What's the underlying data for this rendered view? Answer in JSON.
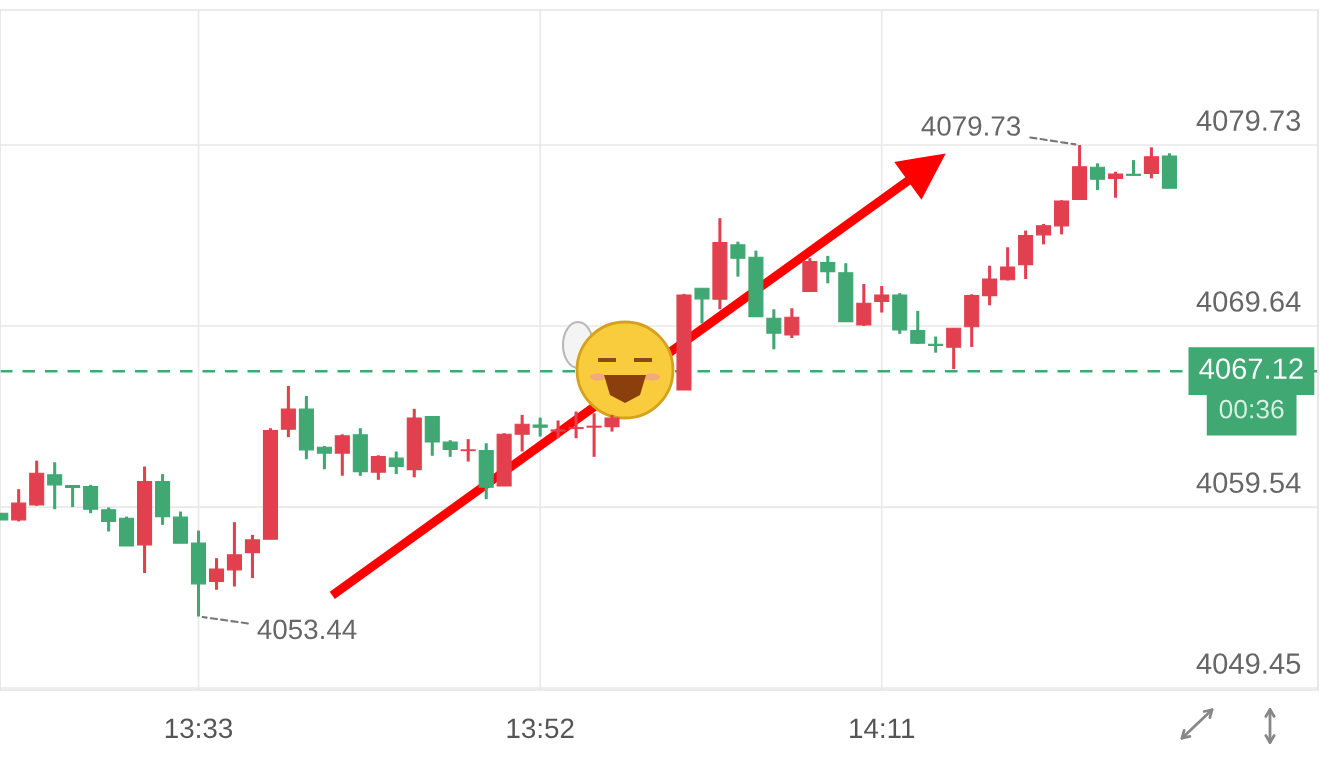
{
  "chart_data": {
    "type": "candlestick",
    "x": [
      13.3667,
      13.3833,
      13.4,
      13.4167,
      13.4333,
      13.45,
      13.4667,
      13.4833,
      13.5,
      13.5167,
      13.5333,
      13.55,
      13.5667,
      13.5833,
      13.6,
      13.6167,
      13.6333,
      13.65,
      13.6667,
      13.6833,
      13.7,
      13.7167,
      13.7333,
      13.75,
      13.7667,
      13.7833,
      13.8,
      13.8167,
      13.8333,
      13.85,
      13.8667,
      13.8833,
      13.9,
      13.9167,
      13.9333,
      14.0,
      14.0167,
      14.0333,
      14.05,
      14.0667,
      14.0833,
      14.1,
      14.1167,
      14.1333,
      14.15,
      14.1667,
      14.1833,
      14.2,
      14.2167,
      14.2333,
      14.25,
      14.2667,
      14.2833,
      14.3,
      14.3167,
      14.3333,
      14.35,
      14.3667,
      14.3833,
      14.4,
      14.4167,
      14.4333,
      14.45
    ],
    "ohlc": [
      [
        4059.2,
        4059.2,
        4058.83,
        4058.83
      ],
      [
        4058.83,
        4060.54,
        4058.74,
        4059.76
      ],
      [
        4059.66,
        4062.13,
        4059.61,
        4061.43
      ],
      [
        4061.34,
        4062.04,
        4059.42,
        4060.78
      ],
      [
        4060.74,
        4060.74,
        4059.54,
        4060.64
      ],
      [
        4060.68,
        4060.78,
        4059.2,
        4059.42
      ],
      [
        4059.39,
        4059.52,
        4058.18,
        4058.74
      ],
      [
        4058.92,
        4059.01,
        4057.37,
        4057.37
      ],
      [
        4057.43,
        4061.8,
        4055.86,
        4060.96
      ],
      [
        4060.96,
        4061.38,
        4058.55,
        4059.01
      ],
      [
        4058.98,
        4059.29,
        4057.53,
        4057.53
      ],
      [
        4057.53,
        4058.23,
        4053.44,
        4055.26
      ],
      [
        4055.39,
        4056.69,
        4054.93,
        4056.08
      ],
      [
        4056.04,
        4058.7,
        4055.11,
        4056.88
      ],
      [
        4057.0,
        4057.99,
        4055.58,
        4057.71
      ],
      [
        4057.75,
        4063.94,
        4057.75,
        4063.81
      ],
      [
        4063.88,
        4066.3,
        4063.44,
        4065.0
      ],
      [
        4065.0,
        4065.74,
        4062.21,
        4062.73
      ],
      [
        4062.88,
        4062.95,
        4061.65,
        4062.55
      ],
      [
        4062.55,
        4063.6,
        4061.29,
        4063.51
      ],
      [
        4063.57,
        4063.94,
        4061.28,
        4061.52
      ],
      [
        4061.49,
        4062.43,
        4061.06,
        4062.36
      ],
      [
        4062.27,
        4062.64,
        4061.38,
        4061.8
      ],
      [
        4061.63,
        4065.02,
        4061.2,
        4064.51
      ],
      [
        4064.59,
        4064.62,
        4062.4,
        4063.17
      ],
      [
        4063.16,
        4063.27,
        4062.34,
        4062.75
      ],
      [
        4062.69,
        4063.33,
        4062.08,
        4062.73
      ],
      [
        4062.69,
        4063.1,
        4059.98,
        4060.65
      ],
      [
        4060.72,
        4063.66,
        4060.72,
        4063.6
      ],
      [
        4063.6,
        4064.68,
        4062.64,
        4064.16
      ],
      [
        4064.12,
        4064.53,
        4063.47,
        4063.99
      ],
      [
        4063.78,
        4064.37,
        4063.38,
        4063.84
      ],
      [
        4063.92,
        4064.87,
        4063.38,
        4063.97
      ],
      [
        4064.0,
        4064.77,
        4062.34,
        4064.05
      ],
      [
        4064.03,
        4064.68,
        4063.75,
        4064.5
      ],
      [
        4066.07,
        4071.43,
        4066.07,
        4071.37
      ],
      [
        4071.74,
        4071.74,
        4069.79,
        4071.15
      ],
      [
        4071.13,
        4075.65,
        4070.57,
        4074.29
      ],
      [
        4074.16,
        4074.34,
        4072.39,
        4073.42
      ],
      [
        4073.47,
        4073.84,
        4070.16,
        4070.16
      ],
      [
        4070.07,
        4070.57,
        4068.34,
        4069.24
      ],
      [
        4069.14,
        4070.63,
        4068.97,
        4070.13
      ],
      [
        4071.56,
        4073.42,
        4071.56,
        4073.23
      ],
      [
        4073.17,
        4073.55,
        4072.02,
        4072.67
      ],
      [
        4072.61,
        4073.14,
        4069.88,
        4069.88
      ],
      [
        4069.7,
        4071.98,
        4069.64,
        4070.91
      ],
      [
        4071.01,
        4071.87,
        4070.39,
        4071.37
      ],
      [
        4071.37,
        4071.47,
        4069.2,
        4069.42
      ],
      [
        4069.38,
        4070.48,
        4068.64,
        4068.68
      ],
      [
        4068.62,
        4069.05,
        4068.15,
        4068.55
      ],
      [
        4068.45,
        4069.51,
        4067.23,
        4069.51
      ],
      [
        4069.6,
        4071.41,
        4068.47,
        4071.33
      ],
      [
        4071.33,
        4073.0,
        4070.79,
        4072.26
      ],
      [
        4072.22,
        4074.03,
        4072.18,
        4072.93
      ],
      [
        4073.06,
        4074.96,
        4072.26,
        4074.68
      ],
      [
        4074.72,
        4075.33,
        4074.19,
        4075.23
      ],
      [
        4075.22,
        4076.65,
        4074.75,
        4076.61
      ],
      [
        4076.7,
        4079.73,
        4076.7,
        4078.52
      ],
      [
        4078.49,
        4078.71,
        4077.22,
        4077.82
      ],
      [
        4077.87,
        4078.24,
        4076.79,
        4078.11
      ],
      [
        4078.1,
        4078.89,
        4078.04,
        4078.04
      ],
      [
        4078.15,
        4079.6,
        4077.87,
        4079.08
      ],
      [
        4079.12,
        4079.27,
        4077.32,
        4077.32
      ]
    ],
    "colors": [
      "#3fa873",
      "#e2404f",
      "#e2404f",
      "#3fa873",
      "#3fa873",
      "#3fa873",
      "#3fa873",
      "#3fa873",
      "#e2404f",
      "#3fa873",
      "#3fa873",
      "#3fa873",
      "#e2404f",
      "#e2404f",
      "#e2404f",
      "#e2404f",
      "#e2404f",
      "#3fa873",
      "#3fa873",
      "#e2404f",
      "#3fa873",
      "#e2404f",
      "#3fa873",
      "#e2404f",
      "#3fa873",
      "#3fa873",
      "#e2404f",
      "#3fa873",
      "#e2404f",
      "#e2404f",
      "#3fa873",
      "#e2404f",
      "#e2404f",
      "#e2404f",
      "#e2404f",
      "#e2404f",
      "#3fa873",
      "#e2404f",
      "#3fa873",
      "#3fa873",
      "#3fa873",
      "#e2404f",
      "#e2404f",
      "#3fa873",
      "#3fa873",
      "#e2404f",
      "#e2404f",
      "#3fa873",
      "#3fa873",
      "#3fa873",
      "#e2404f",
      "#e2404f",
      "#e2404f",
      "#e2404f",
      "#e2404f",
      "#e2404f",
      "#e2404f",
      "#e2404f",
      "#3fa873",
      "#e2404f",
      "#3fa873",
      "#e2404f",
      "#3fa873"
    ],
    "xlim": [
      13.366,
      14.5877
    ],
    "xticks": [
      {
        "value": 13.55,
        "label": "13:33"
      },
      {
        "value": 13.8667,
        "label": "13:52"
      },
      {
        "value": 14.1833,
        "label": "14:11"
      }
    ],
    "ylim": [
      4049.34,
      4087.26
    ],
    "yticks": [
      4049.45,
      4059.54,
      4069.64,
      4079.73
    ],
    "grid": true,
    "ref_lines": [
      {
        "axis": "y",
        "value": 4067.12,
        "label": "4067.12",
        "color": "#3fa873",
        "line_style": "dashed"
      }
    ],
    "annotations": [
      {
        "text": "4079.73",
        "x": 14.3667,
        "y": 4079.73
      },
      {
        "text": "4053.44",
        "x": 13.55,
        "y": 4053.44
      },
      "00:36"
    ]
  }
}
